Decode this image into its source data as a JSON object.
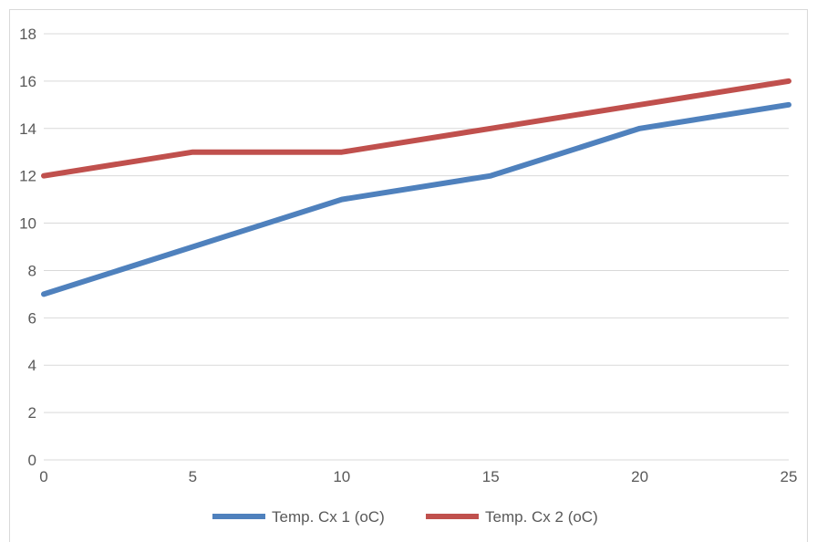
{
  "chart_data": {
    "type": "line",
    "x": [
      0,
      5,
      10,
      15,
      20,
      25
    ],
    "series": [
      {
        "name": "Temp. Cx 1 (oC)",
        "color": "#4f81bd",
        "values": [
          7,
          9,
          11,
          12,
          14,
          15
        ]
      },
      {
        "name": "Temp. Cx 2 (oC)",
        "color": "#c0504d",
        "values": [
          12,
          13,
          13,
          14,
          15,
          16
        ]
      }
    ],
    "xlim": [
      0,
      25
    ],
    "ylim": [
      0,
      18
    ],
    "x_ticks": [
      0,
      5,
      10,
      15,
      20,
      25
    ],
    "y_ticks": [
      0,
      2,
      4,
      6,
      8,
      10,
      12,
      14,
      16,
      18
    ],
    "grid": "horizontal",
    "legend_position": "bottom",
    "title": "",
    "xlabel": "",
    "ylabel": ""
  }
}
